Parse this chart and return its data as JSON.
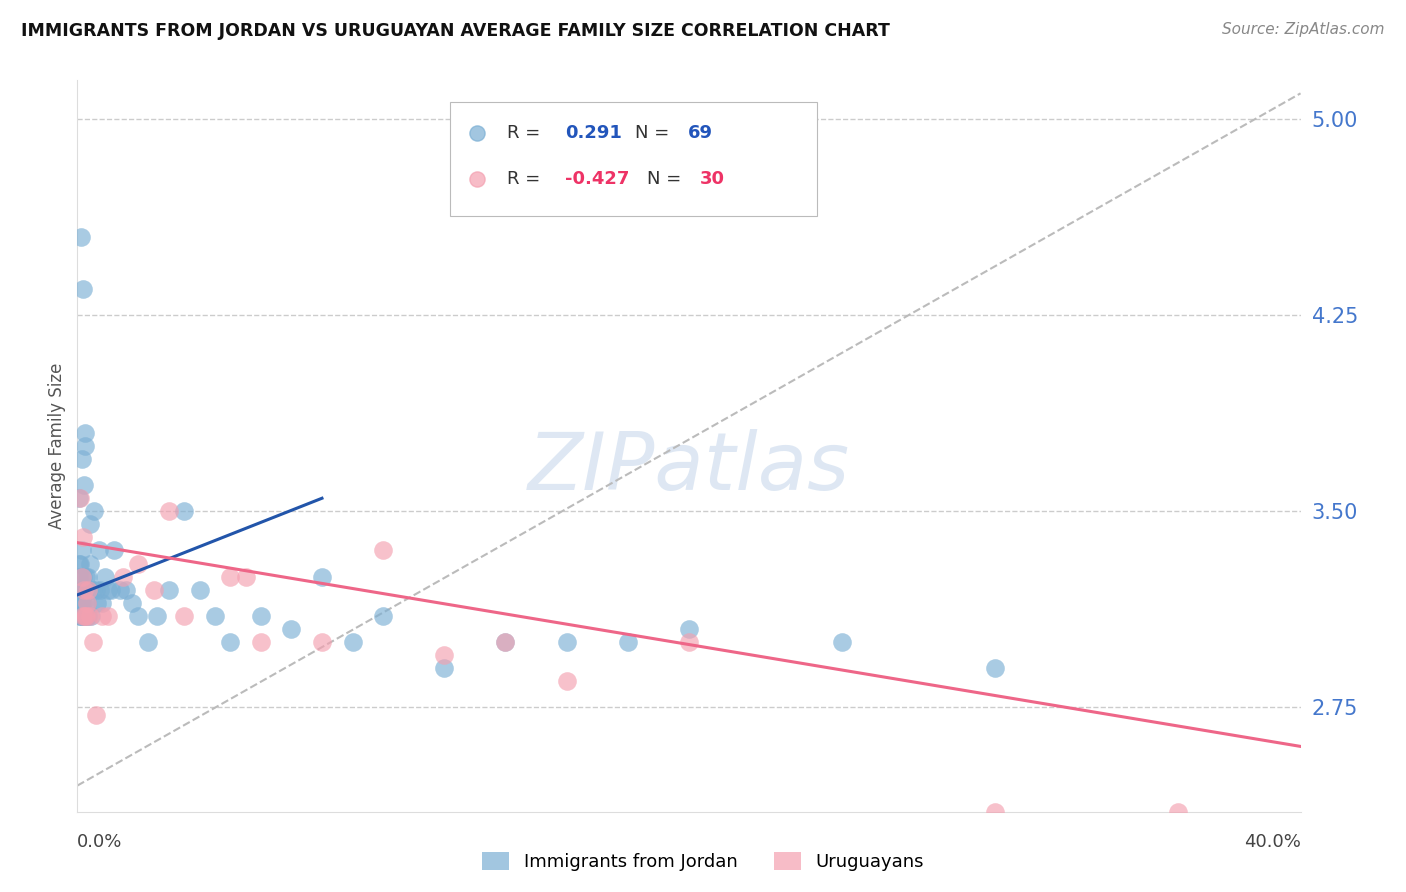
{
  "title": "IMMIGRANTS FROM JORDAN VS URUGUAYAN AVERAGE FAMILY SIZE CORRELATION CHART",
  "source": "Source: ZipAtlas.com",
  "ylabel": "Average Family Size",
  "yticks": [
    2.75,
    3.5,
    4.25,
    5.0
  ],
  "ymin": 2.35,
  "ymax": 5.15,
  "xmin": 0.0,
  "xmax": 40.0,
  "blue_color": "#7BAFD4",
  "pink_color": "#F4A0B0",
  "blue_line_color": "#2255AA",
  "pink_line_color": "#EE6688",
  "ref_line_color": "#BBBBBB",
  "grid_color": "#CCCCCC",
  "background_color": "#ffffff",
  "blue_r": 0.291,
  "blue_n": 69,
  "pink_r": -0.427,
  "pink_n": 30,
  "blue_x": [
    0.04,
    0.05,
    0.06,
    0.07,
    0.08,
    0.09,
    0.1,
    0.1,
    0.11,
    0.12,
    0.13,
    0.14,
    0.15,
    0.15,
    0.16,
    0.17,
    0.18,
    0.19,
    0.2,
    0.21,
    0.22,
    0.23,
    0.24,
    0.25,
    0.26,
    0.27,
    0.28,
    0.3,
    0.32,
    0.34,
    0.36,
    0.38,
    0.4,
    0.43,
    0.46,
    0.5,
    0.55,
    0.6,
    0.65,
    0.7,
    0.75,
    0.8,
    0.9,
    1.0,
    1.1,
    1.2,
    1.4,
    1.6,
    1.8,
    2.0,
    2.3,
    2.6,
    3.0,
    3.5,
    4.0,
    4.5,
    5.0,
    6.0,
    7.0,
    8.0,
    9.0,
    10.0,
    12.0,
    14.0,
    16.0,
    18.0,
    20.0,
    25.0,
    30.0
  ],
  "blue_y": [
    3.3,
    3.55,
    3.2,
    3.25,
    3.1,
    3.15,
    3.1,
    3.3,
    3.2,
    3.15,
    4.55,
    3.35,
    3.2,
    3.7,
    3.1,
    3.25,
    3.15,
    4.35,
    3.1,
    3.2,
    3.6,
    3.1,
    3.8,
    3.75,
    3.2,
    3.25,
    3.1,
    3.2,
    3.15,
    3.25,
    3.1,
    3.2,
    3.45,
    3.3,
    3.1,
    3.2,
    3.5,
    3.2,
    3.15,
    3.35,
    3.2,
    3.15,
    3.25,
    3.2,
    3.2,
    3.35,
    3.2,
    3.2,
    3.15,
    3.1,
    3.0,
    3.1,
    3.2,
    3.5,
    3.2,
    3.1,
    3.0,
    3.1,
    3.05,
    3.25,
    3.0,
    3.1,
    2.9,
    3.0,
    3.0,
    3.0,
    3.05,
    3.0,
    2.9
  ],
  "pink_x": [
    0.1,
    0.15,
    0.18,
    0.2,
    0.22,
    0.25,
    0.28,
    0.32,
    0.36,
    0.4,
    0.5,
    0.6,
    0.8,
    1.0,
    1.5,
    2.0,
    2.5,
    3.0,
    3.5,
    5.0,
    5.5,
    6.0,
    8.0,
    10.0,
    12.0,
    14.0,
    16.0,
    20.0,
    30.0,
    36.0
  ],
  "pink_y": [
    3.55,
    3.25,
    3.1,
    3.4,
    3.2,
    3.1,
    3.1,
    3.15,
    3.2,
    3.1,
    3.0,
    2.72,
    3.1,
    3.1,
    3.25,
    3.3,
    3.2,
    3.5,
    3.1,
    3.25,
    3.25,
    3.0,
    3.0,
    3.35,
    2.95,
    3.0,
    2.85,
    3.0,
    2.35,
    2.35
  ],
  "blue_reg_x0": 0.0,
  "blue_reg_y0": 3.18,
  "blue_reg_x1": 8.0,
  "blue_reg_y1": 3.55,
  "pink_reg_x0": 0.0,
  "pink_reg_y0": 3.38,
  "pink_reg_x1": 40.0,
  "pink_reg_y1": 2.6,
  "ref_x0": 0.0,
  "ref_y0": 2.45,
  "ref_x1": 40.0,
  "ref_y1": 5.1
}
